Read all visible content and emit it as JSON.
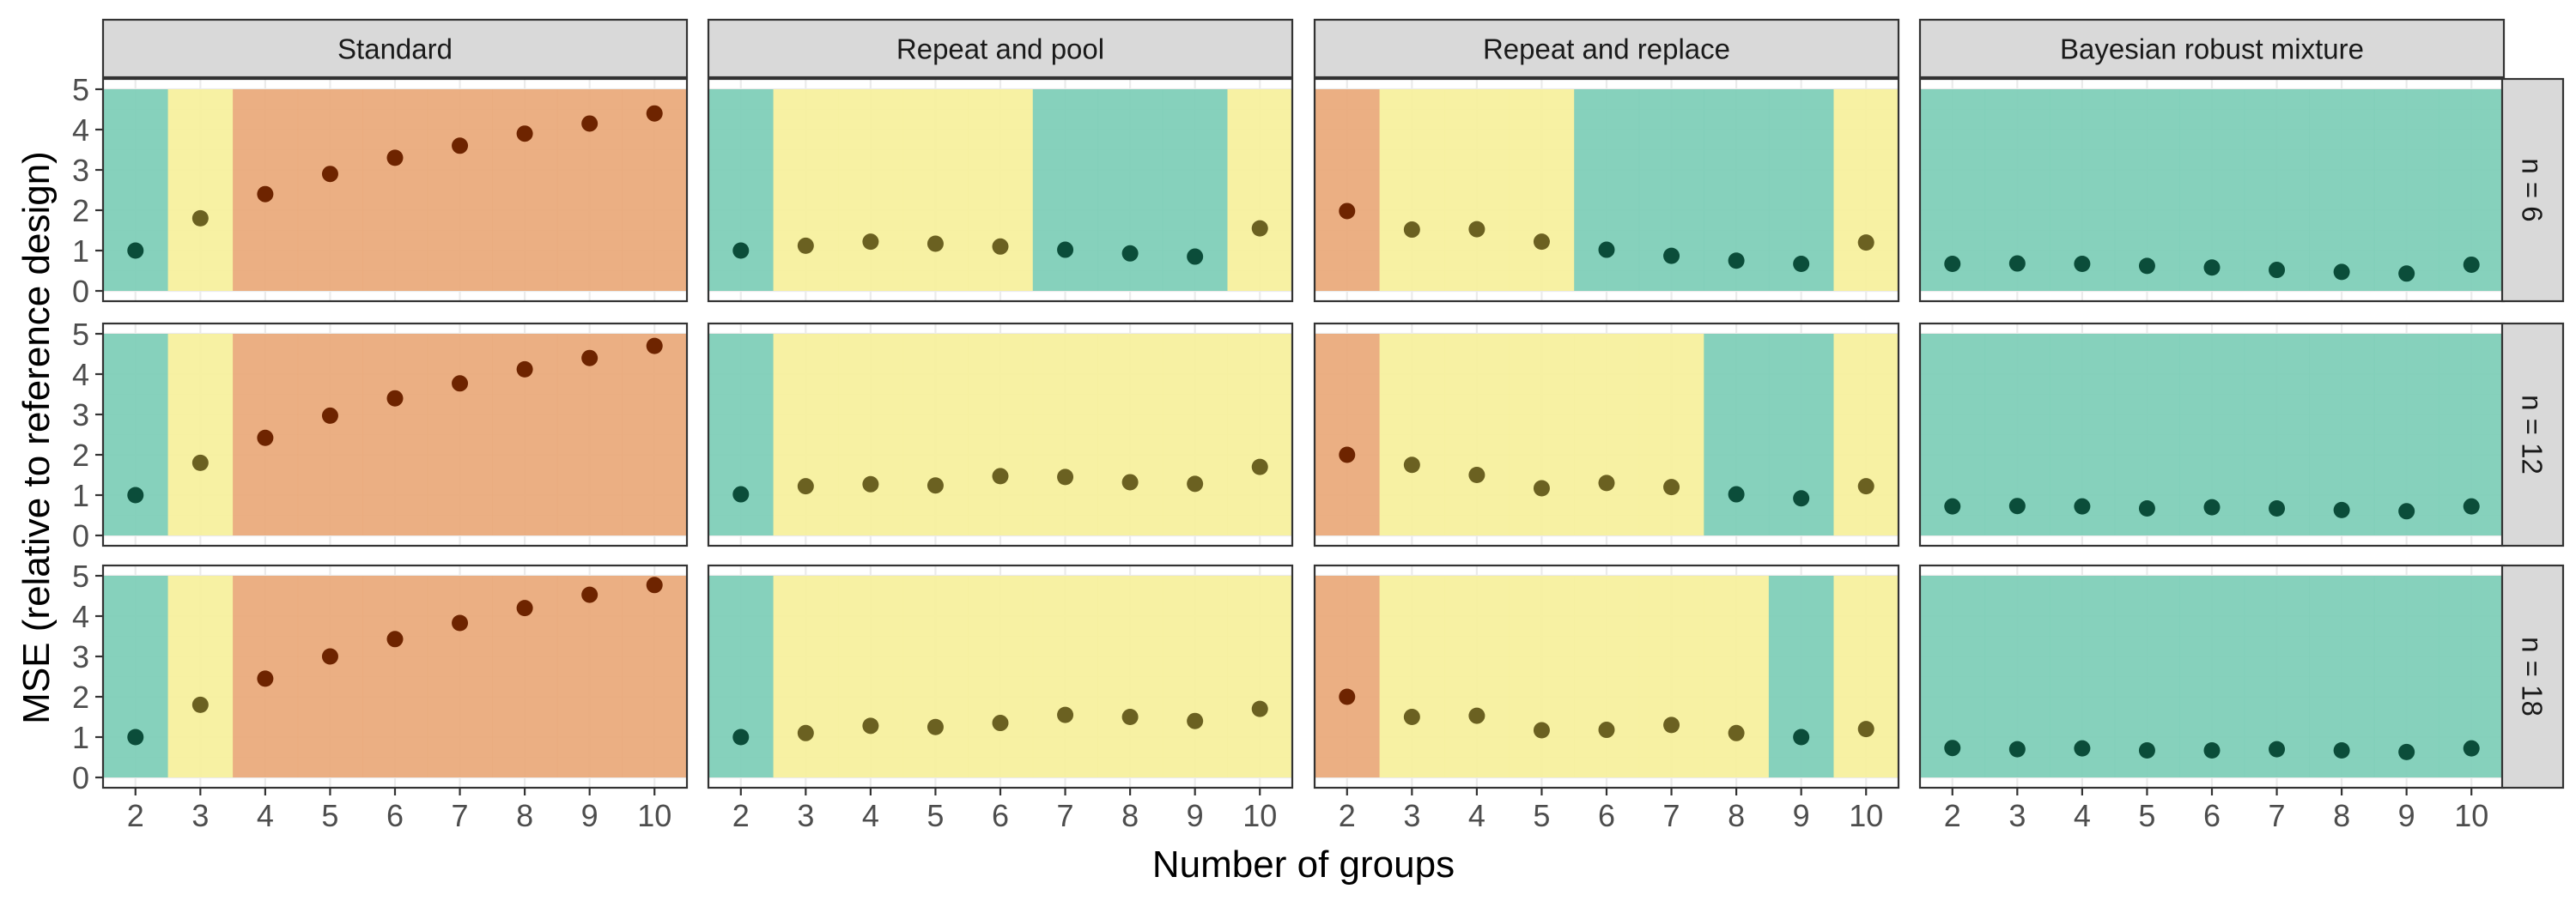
{
  "chart_data": {
    "type": "scatter",
    "facets": {
      "columns": [
        "Standard",
        "Repeat and pool",
        "Repeat and replace",
        "Bayesian robust mixture"
      ],
      "rows": [
        "n = 6",
        "n = 12",
        "n = 18"
      ]
    },
    "xlabel": "Number of groups",
    "ylabel": "MSE (relative to reference design)",
    "x": [
      2,
      3,
      4,
      5,
      6,
      7,
      8,
      9,
      10
    ],
    "x_ticks": [
      "2",
      "3",
      "4",
      "5",
      "6",
      "7",
      "8",
      "9",
      "10"
    ],
    "xlim": [
      1.5,
      10.5
    ],
    "ylim": [
      0,
      5
    ],
    "y_ticks": [
      "0",
      "1",
      "2",
      "3",
      "4",
      "5"
    ],
    "grid": true,
    "colors": {
      "green": "#80cfb8",
      "yellow": "#f7f09e",
      "orange": "#eaab7c",
      "dot_green": "#0b4d3a",
      "dot_yellow": "#6b6121",
      "dot_orange": "#6e2400",
      "strip_bg": "#d9d9d9",
      "grid": "#ebebeb"
    },
    "panels": [
      {
        "col": "Standard",
        "row": "n = 6",
        "y": [
          1.0,
          1.8,
          2.4,
          2.9,
          3.3,
          3.6,
          3.9,
          4.15,
          4.4
        ],
        "zones": [
          "green",
          "yellow",
          "orange",
          "orange",
          "orange",
          "orange",
          "orange",
          "orange",
          "orange"
        ]
      },
      {
        "col": "Repeat and pool",
        "row": "n = 6",
        "y": [
          1.0,
          1.12,
          1.22,
          1.17,
          1.1,
          1.02,
          0.93,
          0.85,
          1.55
        ],
        "zones": [
          "green",
          "yellow",
          "yellow",
          "yellow",
          "yellow",
          "green",
          "green",
          "green",
          "yellow"
        ]
      },
      {
        "col": "Repeat and replace",
        "row": "n = 6",
        "y": [
          1.98,
          1.52,
          1.53,
          1.22,
          1.02,
          0.87,
          0.75,
          0.67,
          1.2
        ],
        "zones": [
          "orange",
          "yellow",
          "yellow",
          "yellow",
          "green",
          "green",
          "green",
          "green",
          "yellow"
        ]
      },
      {
        "col": "Bayesian robust mixture",
        "row": "n = 6",
        "y": [
          0.67,
          0.68,
          0.67,
          0.62,
          0.58,
          0.52,
          0.47,
          0.43,
          0.65
        ],
        "zones": [
          "green",
          "green",
          "green",
          "green",
          "green",
          "green",
          "green",
          "green",
          "green"
        ]
      },
      {
        "col": "Standard",
        "row": "n = 12",
        "y": [
          1.0,
          1.8,
          2.42,
          2.97,
          3.4,
          3.77,
          4.12,
          4.4,
          4.7
        ],
        "zones": [
          "green",
          "yellow",
          "orange",
          "orange",
          "orange",
          "orange",
          "orange",
          "orange",
          "orange"
        ]
      },
      {
        "col": "Repeat and pool",
        "row": "n = 12",
        "y": [
          1.02,
          1.22,
          1.27,
          1.24,
          1.47,
          1.45,
          1.32,
          1.28,
          1.7
        ],
        "zones": [
          "green",
          "yellow",
          "yellow",
          "yellow",
          "yellow",
          "yellow",
          "yellow",
          "yellow",
          "yellow"
        ]
      },
      {
        "col": "Repeat and replace",
        "row": "n = 12",
        "y": [
          2.0,
          1.75,
          1.5,
          1.17,
          1.3,
          1.2,
          1.02,
          0.92,
          1.22
        ],
        "zones": [
          "orange",
          "yellow",
          "yellow",
          "yellow",
          "yellow",
          "yellow",
          "green",
          "green",
          "yellow"
        ]
      },
      {
        "col": "Bayesian robust mixture",
        "row": "n = 12",
        "y": [
          0.72,
          0.73,
          0.72,
          0.67,
          0.7,
          0.67,
          0.63,
          0.6,
          0.72
        ],
        "zones": [
          "green",
          "green",
          "green",
          "green",
          "green",
          "green",
          "green",
          "green",
          "green"
        ]
      },
      {
        "col": "Standard",
        "row": "n = 18",
        "y": [
          1.0,
          1.8,
          2.45,
          3.0,
          3.43,
          3.83,
          4.2,
          4.53,
          4.77
        ],
        "zones": [
          "green",
          "yellow",
          "orange",
          "orange",
          "orange",
          "orange",
          "orange",
          "orange",
          "orange"
        ]
      },
      {
        "col": "Repeat and pool",
        "row": "n = 18",
        "y": [
          1.0,
          1.1,
          1.28,
          1.25,
          1.35,
          1.55,
          1.5,
          1.4,
          1.7
        ],
        "zones": [
          "green",
          "yellow",
          "yellow",
          "yellow",
          "yellow",
          "yellow",
          "yellow",
          "yellow",
          "yellow"
        ]
      },
      {
        "col": "Repeat and replace",
        "row": "n = 18",
        "y": [
          2.0,
          1.5,
          1.53,
          1.17,
          1.18,
          1.3,
          1.1,
          1.0,
          1.2
        ],
        "zones": [
          "orange",
          "yellow",
          "yellow",
          "yellow",
          "yellow",
          "yellow",
          "yellow",
          "green",
          "yellow"
        ]
      },
      {
        "col": "Bayesian robust mixture",
        "row": "n = 18",
        "y": [
          0.73,
          0.7,
          0.72,
          0.67,
          0.67,
          0.7,
          0.67,
          0.63,
          0.72
        ],
        "zones": [
          "green",
          "green",
          "green",
          "green",
          "green",
          "green",
          "green",
          "green",
          "green"
        ]
      }
    ]
  }
}
